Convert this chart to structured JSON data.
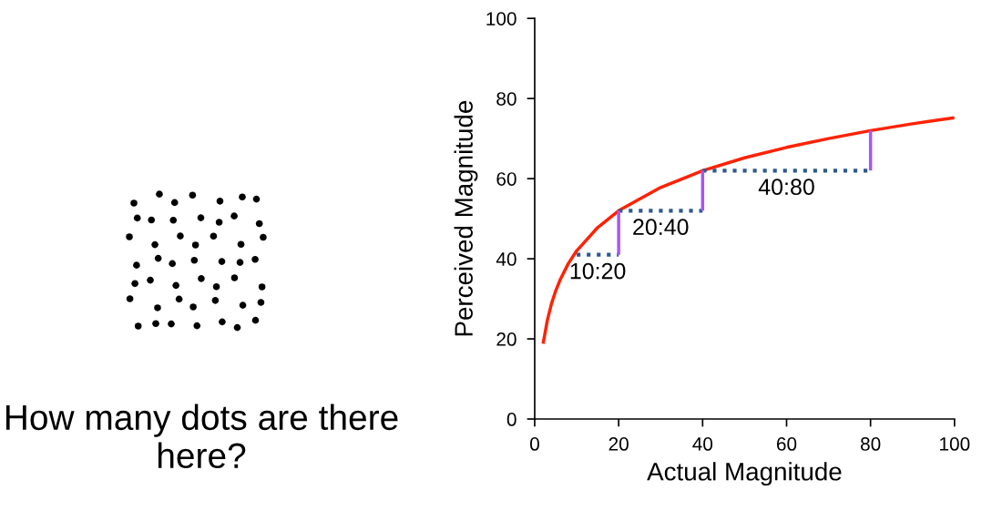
{
  "chart_data": {
    "type": "line",
    "xlabel": "Actual Magnitude",
    "ylabel": "Perceived Magnitude",
    "xlim": [
      0,
      100
    ],
    "xticks": [
      0,
      20,
      40,
      60,
      80,
      100
    ],
    "ylim": [
      0,
      100
    ],
    "yticks": [
      0,
      20,
      40,
      60,
      80,
      100
    ],
    "grid": false,
    "legend": false,
    "series": [
      {
        "color": "#ff2200",
        "x": [
          2,
          3,
          4,
          5,
          6,
          8,
          10,
          15,
          20,
          30,
          40,
          50,
          60,
          70,
          80,
          90,
          100
        ],
        "values": [
          18.8,
          24.6,
          28.8,
          32.0,
          34.6,
          38.8,
          42,
          47.8,
          52,
          57.8,
          62,
          65.2,
          67.8,
          70,
          72,
          73.7,
          75.2
        ],
        "line_style": "solid"
      },
      {
        "color": "#2e5a8c",
        "x": [
          10,
          20
        ],
        "values": [
          41,
          41
        ],
        "line_style": "dotted"
      },
      {
        "color": "#2e5a8c",
        "x": [
          20,
          40
        ],
        "values": [
          52,
          52
        ],
        "line_style": "dotted"
      },
      {
        "color": "#2e5a8c",
        "x": [
          40,
          80
        ],
        "values": [
          62,
          62
        ],
        "line_style": "dotted"
      },
      {
        "color": "#a855f7",
        "x": [
          20,
          20
        ],
        "values": [
          41,
          52
        ],
        "line_style": "solid"
      },
      {
        "color": "#a855f7",
        "x": [
          40,
          40
        ],
        "values": [
          52,
          62
        ],
        "line_style": "solid"
      },
      {
        "color": "#a855f7",
        "x": [
          80,
          80
        ],
        "values": [
          62,
          72
        ],
        "line_style": "solid"
      }
    ],
    "annotations": [
      {
        "text": "10:20",
        "x": 15,
        "y": 41
      },
      {
        "text": "20:40",
        "x": 30,
        "y": 52
      },
      {
        "text": "40:80",
        "x": 60,
        "y": 62
      },
      "How many dots are there here?"
    ]
  }
}
